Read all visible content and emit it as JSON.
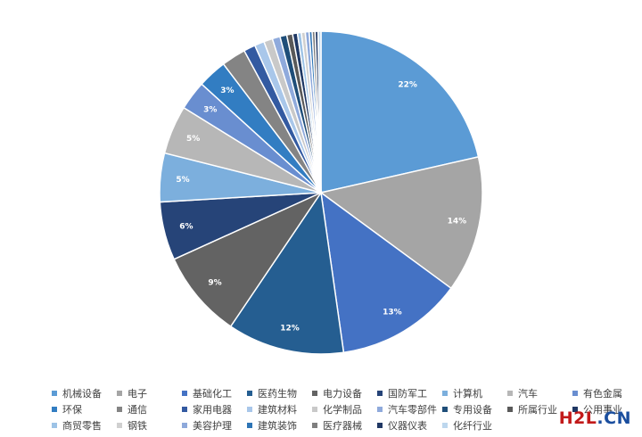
{
  "chart_data": {
    "type": "pie",
    "title": "",
    "legend_position": "bottom",
    "slices": [
      {
        "label": "机械设备",
        "value": 22,
        "display": "22%",
        "color": "#5b9bd5"
      },
      {
        "label": "电子",
        "value": 14,
        "display": "14%",
        "color": "#a5a5a5"
      },
      {
        "label": "基础化工",
        "value": 13,
        "display": "13%",
        "color": "#4472c4"
      },
      {
        "label": "医药生物",
        "value": 12,
        "display": "12%",
        "color": "#255e91"
      },
      {
        "label": "电力设备",
        "value": 9,
        "display": "9%",
        "color": "#636363"
      },
      {
        "label": "国防军工",
        "value": 6,
        "display": "6%",
        "color": "#264478"
      },
      {
        "label": "计算机",
        "value": 5,
        "display": "5%",
        "color": "#7cafdd"
      },
      {
        "label": "汽车",
        "value": 5,
        "display": "5%",
        "color": "#b7b7b7"
      },
      {
        "label": "有色金属",
        "value": 3,
        "display": "3%",
        "color": "#698ed0"
      },
      {
        "label": "环保",
        "value": 3,
        "display": "3%",
        "color": "#327dc2"
      },
      {
        "label": "通信",
        "value": 2.5,
        "display": "",
        "color": "#848484"
      },
      {
        "label": "家用电器",
        "value": 1.2,
        "display": "",
        "color": "#335aa1"
      },
      {
        "label": "建筑材料",
        "value": 1,
        "display": "",
        "color": "#a9c7ea"
      },
      {
        "label": "化学制品",
        "value": 0.9,
        "display": "",
        "color": "#c9c9c9"
      },
      {
        "label": "汽车零部件",
        "value": 0.8,
        "display": "",
        "color": "#8faadc"
      },
      {
        "label": "专用设备",
        "value": 0.7,
        "display": "",
        "color": "#1f4e79"
      },
      {
        "label": "所属行业",
        "value": 0.6,
        "display": "",
        "color": "#595959"
      },
      {
        "label": "公用事业",
        "value": 0.5,
        "display": "",
        "color": "#1f3864"
      },
      {
        "label": "商贸零售",
        "value": 0.4,
        "display": "",
        "color": "#9dc3e6"
      },
      {
        "label": "钢铁",
        "value": 0.4,
        "display": "",
        "color": "#d0d0d0"
      },
      {
        "label": "美容护理",
        "value": 0.4,
        "display": "",
        "color": "#8ea9db"
      },
      {
        "label": "建筑装饰",
        "value": 0.3,
        "display": "",
        "color": "#2e75b6"
      },
      {
        "label": "医疗器械",
        "value": 0.3,
        "display": "",
        "color": "#7f7f7f"
      },
      {
        "label": "仪器仪表",
        "value": 0.3,
        "display": "",
        "color": "#203864"
      },
      {
        "label": "化纤行业",
        "value": 0.3,
        "display": "",
        "color": "#bdd7ee"
      }
    ]
  },
  "watermark": {
    "part1": "H2L",
    "part2": ".CN"
  }
}
